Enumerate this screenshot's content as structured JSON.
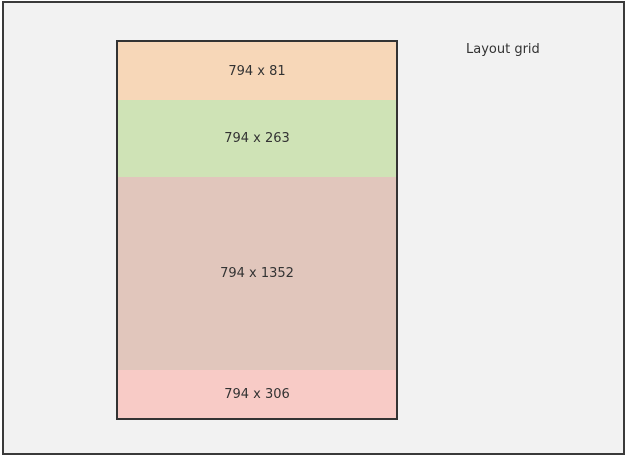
{
  "diagram": {
    "title": "Layout grid",
    "blocks": [
      {
        "label": "794 x 81",
        "color": "#f7d7b8"
      },
      {
        "label": "794 x 263",
        "color": "#cfe3b6"
      },
      {
        "label": "794 x 1352",
        "color": "#e1c6bc"
      },
      {
        "label": "794 x 306",
        "color": "#f8cbc6"
      }
    ]
  }
}
